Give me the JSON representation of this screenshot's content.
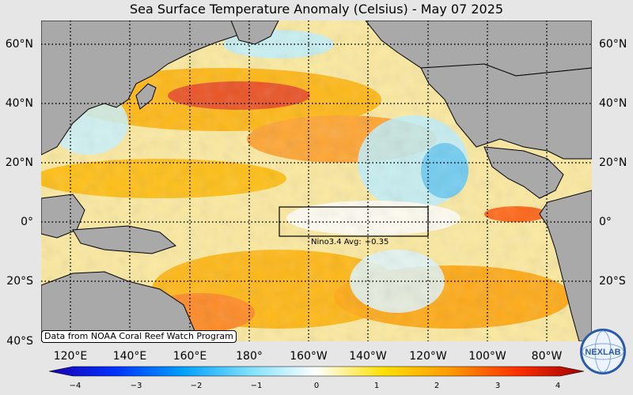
{
  "title": "Sea Surface Temperature Anomaly (Celsius) - May 07 2025",
  "lat_labels": [
    "60°N",
    "40°N",
    "20°N",
    "0°",
    "20°S",
    "40°S"
  ],
  "lon_labels": [
    "120°E",
    "140°E",
    "160°E",
    "180°",
    "160°W",
    "140°W",
    "120°W",
    "100°W",
    "80°W"
  ],
  "nino": {
    "label": "Nino3.4 Avg:",
    "value": "+0.35"
  },
  "credit": "Data from NOAA Coral Reef Watch Program",
  "colorbar": {
    "ticks": [
      "−4",
      "−3",
      "−2",
      "−1",
      "0",
      "1",
      "2",
      "3",
      "4"
    ],
    "colors": [
      "#1a00b0",
      "#0033ff",
      "#00a0ff",
      "#7fe0ff",
      "#ffffff",
      "#ffe000",
      "#ff9a00",
      "#ff3000",
      "#a00000"
    ]
  },
  "logo_text": "NEXLAB"
}
